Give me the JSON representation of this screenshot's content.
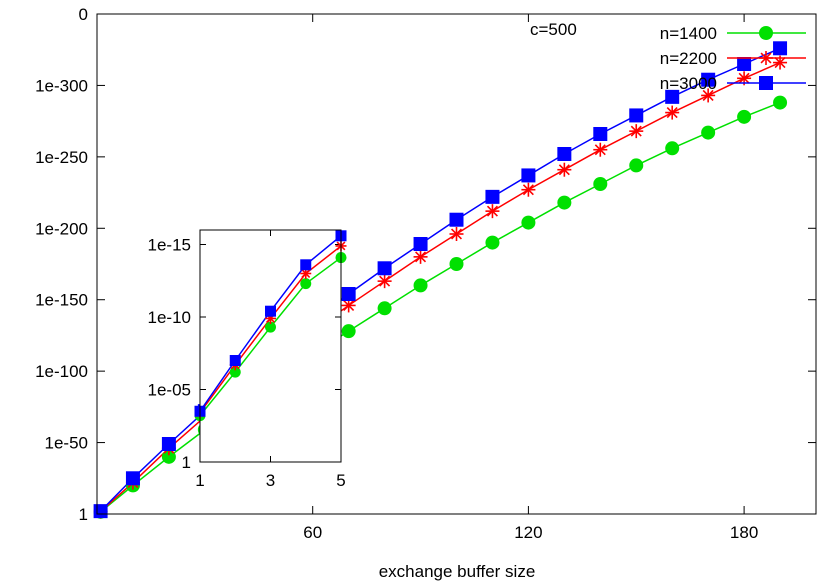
{
  "chart_data": [
    {
      "type": "line",
      "title": "",
      "xlabel": "exchange buffer size",
      "ylabel": "",
      "y_scale": "log",
      "xlim": [
        0,
        200
      ],
      "ylim_log10": [
        -350,
        0
      ],
      "xticks": [
        60,
        120,
        180
      ],
      "xtick_labels": [
        "60",
        "120",
        "180"
      ],
      "yticks_log10": [
        0,
        -50,
        -100,
        -150,
        -200,
        -250,
        -300,
        -350
      ],
      "ytick_labels": [
        "1",
        "1e-50",
        "1e-100",
        "1e-150",
        "1e-200",
        "1e-250",
        "1e-300",
        "0"
      ],
      "legend_position": "top-right",
      "annotation": "c=500",
      "x": [
        1,
        10,
        20,
        30,
        40,
        50,
        60,
        70,
        80,
        90,
        100,
        110,
        120,
        130,
        140,
        150,
        160,
        170,
        180,
        190
      ],
      "series": [
        {
          "name": "n=1400",
          "color": "#00e000",
          "marker": "circle",
          "log10_y": [
            -1.5,
            -20,
            -40,
            -59,
            -77,
            -95,
            -112,
            -128,
            -144,
            -160,
            -175,
            -190,
            -204,
            -218,
            -231,
            -244,
            -256,
            -267,
            -278,
            -288
          ]
        },
        {
          "name": "n=2200",
          "color": "#ff0000",
          "marker": "star",
          "log10_y": [
            -1.8,
            -22,
            -46,
            -68,
            -89,
            -109,
            -128,
            -146,
            -163,
            -180,
            -196,
            -212,
            -227,
            -241,
            -255,
            -268,
            -281,
            -293,
            -305,
            -316
          ]
        },
        {
          "name": "n=3000",
          "color": "#0000ff",
          "marker": "square",
          "log10_y": [
            -2.0,
            -25,
            -49,
            -72,
            -94,
            -115,
            -135,
            -154,
            -172,
            -189,
            -206,
            -222,
            -237,
            -252,
            -266,
            -279,
            -292,
            -304,
            -315,
            -326
          ]
        }
      ]
    },
    {
      "type": "line",
      "title": "",
      "xlabel": "",
      "ylabel": "",
      "y_scale": "log",
      "xlim": [
        1,
        5
      ],
      "ylim_log10": [
        -16,
        0
      ],
      "xticks": [
        1,
        3,
        5
      ],
      "xtick_labels": [
        "1",
        "3",
        "5"
      ],
      "yticks_log10": [
        0,
        -5,
        -10,
        -15
      ],
      "ytick_labels": [
        "1",
        "1e-05",
        "1e-10",
        "1e-15"
      ],
      "x": [
        1,
        2,
        3,
        4,
        5
      ],
      "series": [
        {
          "name": "n=1400",
          "color": "#00e000",
          "marker": "circle",
          "log10_y": [
            -3.2,
            -6.2,
            -9.3,
            -12.3,
            -14.1
          ]
        },
        {
          "name": "n=2200",
          "color": "#ff0000",
          "marker": "star",
          "log10_y": [
            -3.4,
            -6.7,
            -9.9,
            -13.0,
            -14.9
          ]
        },
        {
          "name": "n=3000",
          "color": "#0000ff",
          "marker": "square",
          "log10_y": [
            -3.5,
            -7.0,
            -10.4,
            -13.6,
            -15.6
          ]
        }
      ]
    }
  ]
}
